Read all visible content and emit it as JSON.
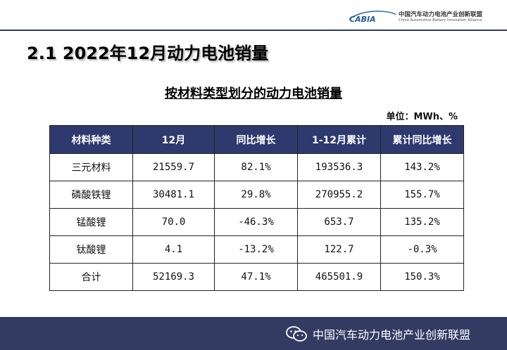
{
  "header": {
    "logo_text": "CABIA",
    "org_cn": "中国汽车动力电池产业创新联盟",
    "org_en": "China Automotive Battery Innovation Alliance"
  },
  "slide_title": "2.1  2022年12月动力电池销量",
  "table_title": "按材料类型划分的动力电池销量",
  "unit": "单位：MWh、%",
  "table": {
    "headers": [
      "材料种类",
      "12月",
      "同比增长",
      "1-12月累计",
      "累计同比增长"
    ],
    "rows": [
      [
        "三元材料",
        "21559.7",
        "82.1%",
        "193536.3",
        "143.2%"
      ],
      [
        "磷酸铁锂",
        "30481.1",
        "29.8%",
        "270955.2",
        "155.7%"
      ],
      [
        "锰酸锂",
        "70.0",
        "-46.3%",
        "653.7",
        "135.2%"
      ],
      [
        "钛酸锂",
        "4.1",
        "-13.2%",
        "122.7",
        "-0.3%"
      ],
      [
        "合计",
        "52169.3",
        "47.1%",
        "465501.9",
        "150.3%"
      ]
    ]
  },
  "footer": {
    "text": "中国汽车动力电池产业创新联盟",
    "icon": "wechat-icon"
  },
  "colors": {
    "header_fill": "#2e3a6e",
    "footer_fill": "#333b62",
    "rule": "#2e3a66"
  }
}
